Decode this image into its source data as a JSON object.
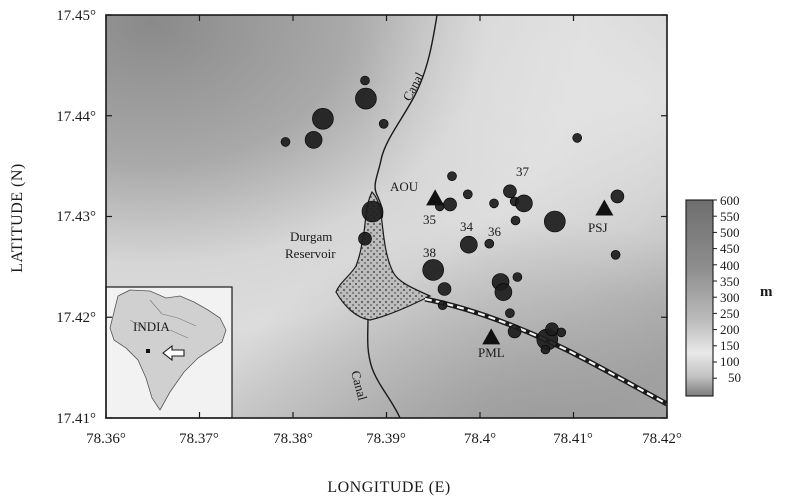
{
  "map": {
    "axes": {
      "x_label": "LONGITUDE (E)",
      "y_label": "LATITUDE (N)",
      "x_ticks": [
        "78.36°",
        "78.37°",
        "78.38°",
        "78.39°",
        "78.4°",
        "78.41°",
        "78.42°"
      ],
      "y_ticks": [
        "17.45°",
        "17.44°",
        "17.43°",
        "17.42°",
        "17.41°"
      ]
    },
    "features": {
      "canal_north": "Canal",
      "canal_south": "Canal",
      "reservoir_line1": "Durgam",
      "reservoir_line2": "Reservoir"
    },
    "stations": [
      {
        "name": "AOU",
        "lon": 78.3952,
        "lat": 17.4318
      },
      {
        "name": "PSJ",
        "lon": 78.4133,
        "lat": 17.4308
      },
      {
        "name": "PML",
        "lon": 78.4012,
        "lat": 17.418
      }
    ],
    "event_labels": [
      "37",
      "35",
      "34",
      "36",
      "38"
    ],
    "events": [
      {
        "lon": 78.3877,
        "lat": 17.4435,
        "mag": 1
      },
      {
        "lon": 78.3878,
        "lat": 17.4417,
        "mag": 4
      },
      {
        "lon": 78.3832,
        "lat": 17.4397,
        "mag": 4
      },
      {
        "lon": 78.3897,
        "lat": 17.4392,
        "mag": 1
      },
      {
        "lon": 78.3792,
        "lat": 17.4374,
        "mag": 1
      },
      {
        "lon": 78.3822,
        "lat": 17.4376,
        "mag": 3
      },
      {
        "lon": 78.4104,
        "lat": 17.4378,
        "mag": 1
      },
      {
        "lon": 78.3885,
        "lat": 17.4305,
        "mag": 4
      },
      {
        "lon": 78.3877,
        "lat": 17.4278,
        "mag": 2
      },
      {
        "lon": 78.397,
        "lat": 17.434,
        "mag": 1
      },
      {
        "lon": 78.3957,
        "lat": 17.431,
        "mag": 1
      },
      {
        "lon": 78.3968,
        "lat": 17.4312,
        "mag": 2
      },
      {
        "lon": 78.3987,
        "lat": 17.4322,
        "mag": 1
      },
      {
        "lon": 78.4032,
        "lat": 17.4325,
        "mag": 2
      },
      {
        "lon": 78.4037,
        "lat": 17.4315,
        "mag": 1
      },
      {
        "lon": 78.4047,
        "lat": 17.4313,
        "mag": 3
      },
      {
        "lon": 78.4015,
        "lat": 17.4313,
        "mag": 1
      },
      {
        "lon": 78.4038,
        "lat": 17.4296,
        "mag": 1
      },
      {
        "lon": 78.401,
        "lat": 17.4273,
        "mag": 1
      },
      {
        "lon": 78.408,
        "lat": 17.4295,
        "mag": 4
      },
      {
        "lon": 78.4147,
        "lat": 17.432,
        "mag": 2
      },
      {
        "lon": 78.4145,
        "lat": 17.4262,
        "mag": 1
      },
      {
        "lon": 78.3988,
        "lat": 17.4272,
        "mag": 3
      },
      {
        "lon": 78.395,
        "lat": 17.4247,
        "mag": 4
      },
      {
        "lon": 78.3962,
        "lat": 17.4228,
        "mag": 2
      },
      {
        "lon": 78.396,
        "lat": 17.4212,
        "mag": 1
      },
      {
        "lon": 78.4022,
        "lat": 17.4235,
        "mag": 3
      },
      {
        "lon": 78.404,
        "lat": 17.424,
        "mag": 1
      },
      {
        "lon": 78.4025,
        "lat": 17.4225,
        "mag": 3
      },
      {
        "lon": 78.4032,
        "lat": 17.4204,
        "mag": 1
      },
      {
        "lon": 78.4037,
        "lat": 17.4186,
        "mag": 2
      },
      {
        "lon": 78.4072,
        "lat": 17.4178,
        "mag": 4
      },
      {
        "lon": 78.4077,
        "lat": 17.4188,
        "mag": 2
      },
      {
        "lon": 78.4087,
        "lat": 17.4185,
        "mag": 1
      },
      {
        "lon": 78.407,
        "lat": 17.4168,
        "mag": 1
      }
    ],
    "inset": {
      "label": "INDIA"
    },
    "colorbar": {
      "unit": "m",
      "ticks": [
        "600",
        "550",
        "500",
        "450",
        "400",
        "350",
        "300",
        "250",
        "200",
        "150",
        "100",
        "50"
      ]
    }
  }
}
